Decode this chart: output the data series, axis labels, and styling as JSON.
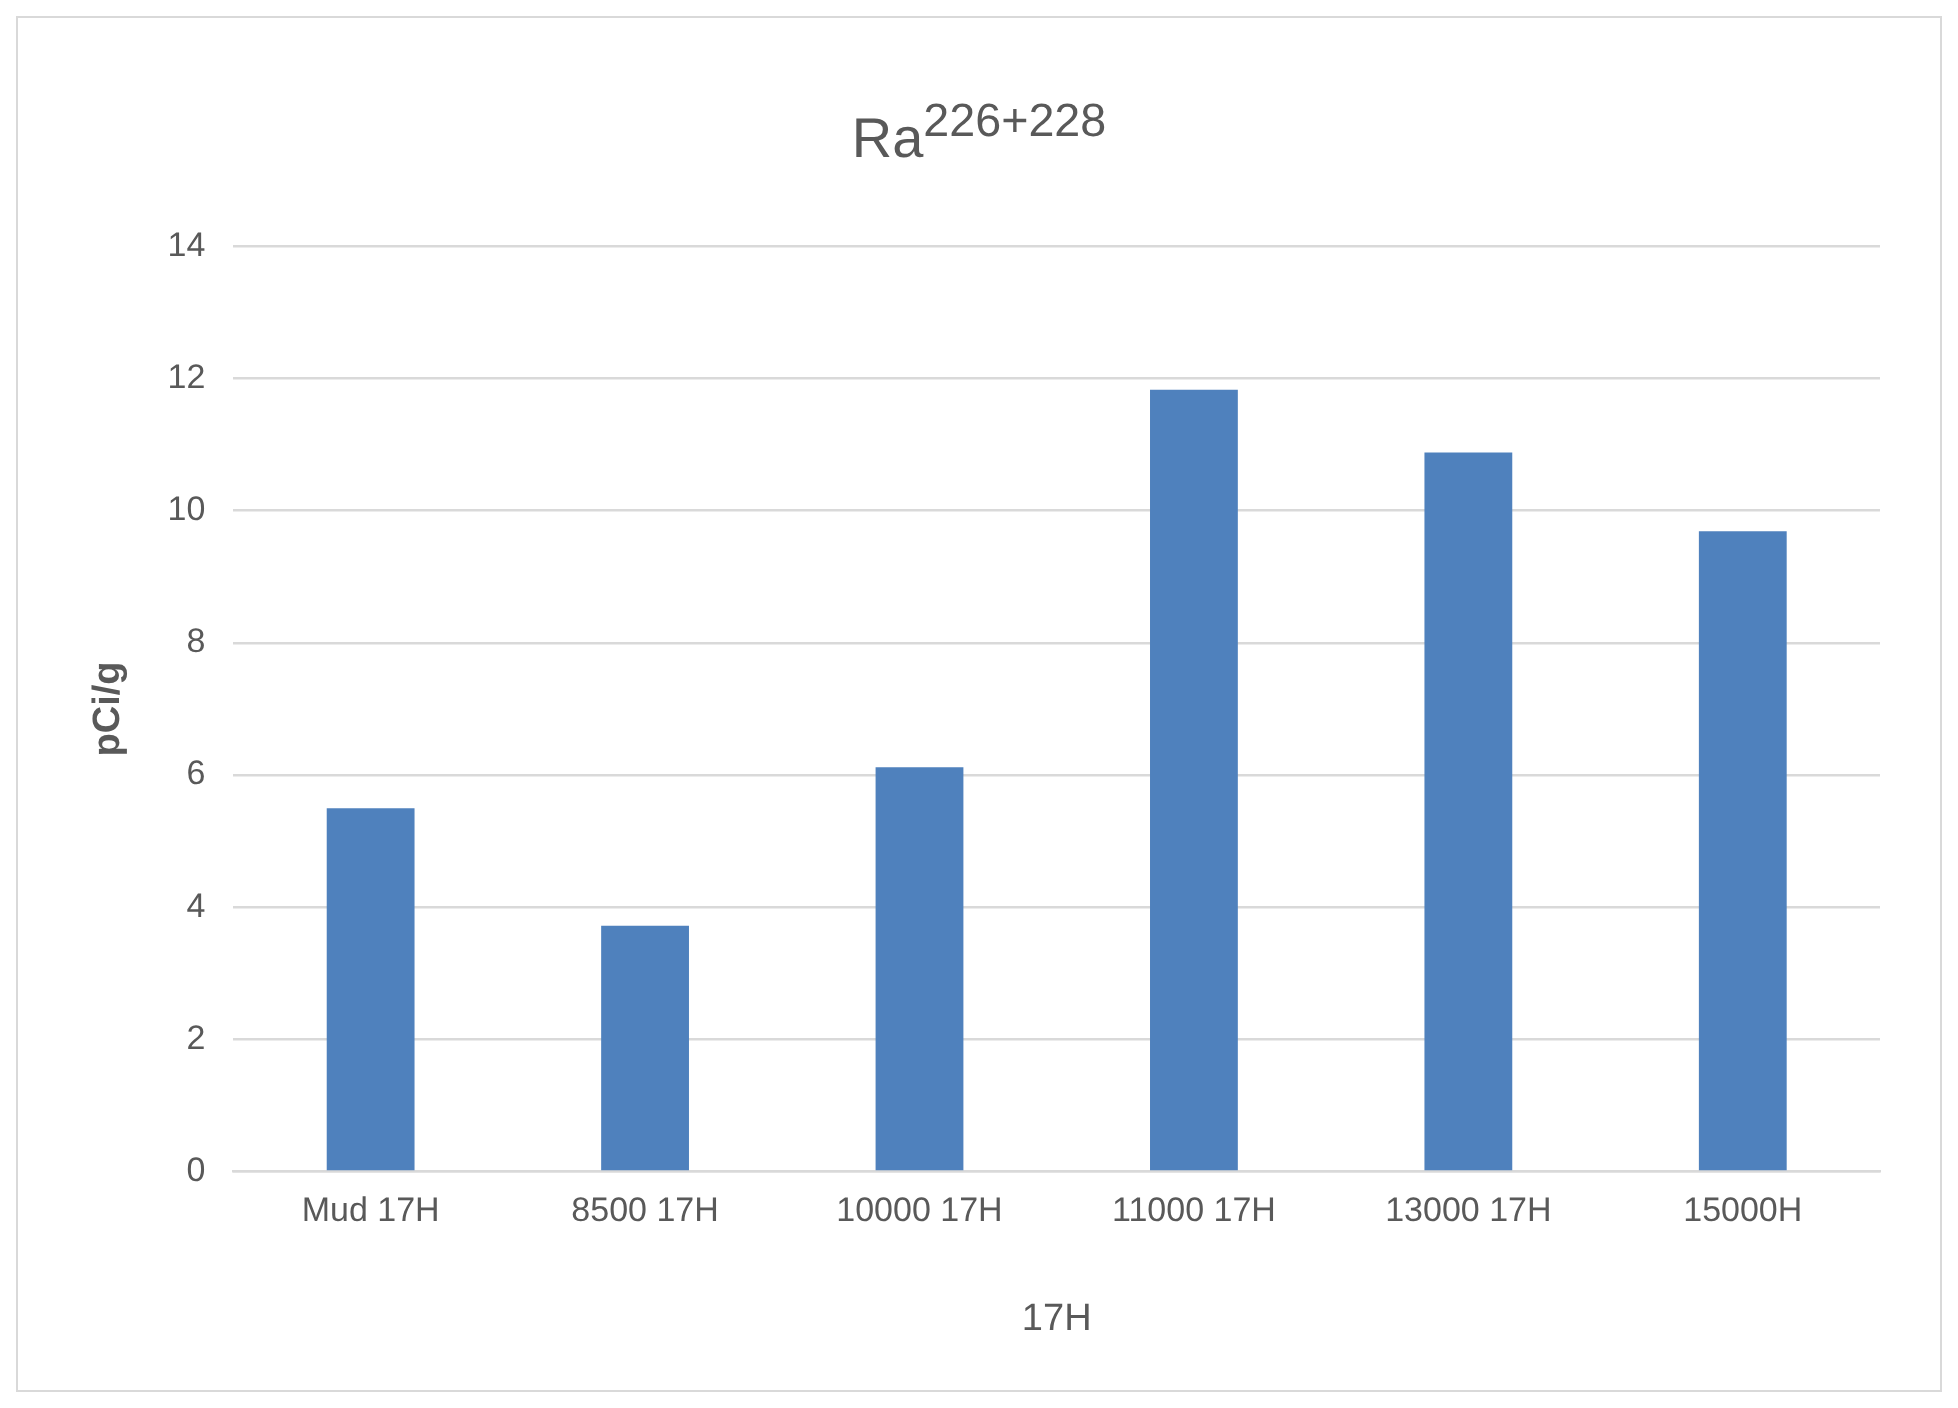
{
  "chart_data": {
    "type": "bar",
    "title": "Ra$^{226+228}$",
    "xlabel": "17H",
    "ylabel": "pCi/g",
    "categories": [
      "Mud 17H",
      "8500 17H",
      "10000 17H",
      "11000 17H",
      "13000 17H",
      "15000H"
    ],
    "values": [
      5.5,
      3.72,
      6.12,
      11.83,
      10.88,
      9.69
    ],
    "color": "#4f81bd",
    "ylim": [
      0,
      14
    ],
    "yticks": [
      0,
      2,
      4,
      6,
      8,
      10,
      12,
      14
    ],
    "grid": "y",
    "legend": false
  }
}
